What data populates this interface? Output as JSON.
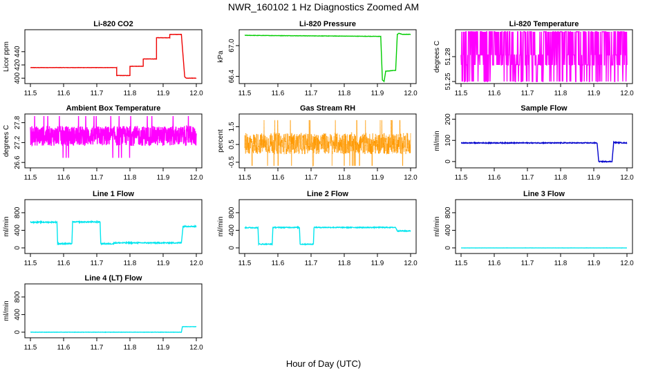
{
  "figure": {
    "title": "NWR_160102  1 Hz Diagnostics Zoomed AM",
    "xlabel": "Hour of Day (UTC)"
  },
  "chart_data": [
    {
      "type": "line",
      "title": "Li-820 CO2",
      "ylabel": "Licor ppm",
      "color": "#ee0000",
      "xlim": [
        11.5,
        12.0
      ],
      "ylim": [
        395,
        470
      ],
      "xticks": [
        "11.5",
        "11.6",
        "11.7",
        "11.8",
        "11.9",
        "12.0"
      ],
      "yticks": [
        "400",
        "420",
        "440"
      ],
      "x": [
        11.5,
        11.76,
        11.76,
        11.8,
        11.8,
        11.84,
        11.84,
        11.88,
        11.88,
        11.92,
        11.92,
        11.955,
        11.965,
        11.97,
        12.0
      ],
      "y": [
        416,
        416,
        404,
        404,
        418,
        418,
        429,
        429,
        461,
        461,
        466,
        466,
        402,
        400,
        400
      ],
      "noise": 0.2
    },
    {
      "type": "line",
      "title": "Li-820 Pressure",
      "ylabel": "kPa",
      "color": "#00cc00",
      "xlim": [
        11.5,
        12.0
      ],
      "ylim": [
        66.3,
        67.27
      ],
      "xticks": [
        "11.5",
        "11.6",
        "11.7",
        "11.8",
        "11.9",
        "12.0"
      ],
      "yticks": [
        "66.4",
        "67.0"
      ],
      "x": [
        11.5,
        11.91,
        11.915,
        11.92,
        11.925,
        11.955,
        11.96,
        11.965,
        11.975,
        12.0
      ],
      "y": [
        67.2,
        67.18,
        66.33,
        66.3,
        66.5,
        66.52,
        67.22,
        67.24,
        67.22,
        67.22
      ],
      "noise": 0.003
    },
    {
      "type": "line",
      "title": "Li-820 Temperature",
      "ylabel": "degrees C",
      "color": "#ff00ff",
      "xlim": [
        11.5,
        12.0
      ],
      "ylim": [
        51.25,
        51.31
      ],
      "xticks": [
        "11.5",
        "11.6",
        "11.7",
        "11.8",
        "11.9",
        "12.0"
      ],
      "yticks": [
        "51.25",
        "51.28"
      ],
      "pattern": "quantized",
      "levels": [
        51.25,
        51.27,
        51.282,
        51.31
      ],
      "x": [
        11.5,
        12.0
      ],
      "y": [
        51.282,
        51.282
      ]
    },
    {
      "type": "line",
      "title": "Ambient Box Temperature",
      "ylabel": "degrees C",
      "color": "#ff00ff",
      "xlim": [
        11.5,
        12.0
      ],
      "ylim": [
        26.5,
        28.0
      ],
      "xticks": [
        "11.5",
        "11.6",
        "11.7",
        "11.8",
        "11.9",
        "12.0"
      ],
      "yticks": [
        "26.6",
        "27.2",
        "27.8"
      ],
      "pattern": "noise",
      "center": 27.4,
      "amplitude": 0.3,
      "x": [
        11.5,
        12.0
      ],
      "y": [
        27.4,
        27.4
      ]
    },
    {
      "type": "line",
      "title": "Gas Stream RH",
      "ylabel": "percent",
      "color": "#ff9900",
      "xlim": [
        11.5,
        12.0
      ],
      "ylim": [
        -0.7,
        2.1
      ],
      "xticks": [
        "11.5",
        "11.6",
        "11.7",
        "11.8",
        "11.9",
        "12.0"
      ],
      "yticks": [
        "-0.5",
        "0.5",
        "1.5"
      ],
      "pattern": "noise",
      "center": 0.55,
      "amplitude": 0.6,
      "dotted": true,
      "x": [
        11.5,
        12.0
      ],
      "y": [
        0.55,
        0.55
      ]
    },
    {
      "type": "line",
      "title": "Sample Flow",
      "ylabel": "ml/min",
      "color": "#0000cc",
      "xlim": [
        11.5,
        12.0
      ],
      "ylim": [
        -20,
        215
      ],
      "xticks": [
        "11.5",
        "11.6",
        "11.7",
        "11.8",
        "11.9",
        "12.0"
      ],
      "yticks": [
        "0",
        "100",
        "200"
      ],
      "x": [
        11.5,
        11.91,
        11.915,
        11.955,
        11.96,
        12.0
      ],
      "y": [
        88,
        88,
        0,
        0,
        90,
        88
      ],
      "noise": 2
    },
    {
      "type": "line",
      "title": "Line 1 Flow",
      "ylabel": "ml/min",
      "color": "#00e5ee",
      "xlim": [
        11.5,
        12.0
      ],
      "ylim": [
        -80,
        1050
      ],
      "xticks": [
        "11.5",
        "11.6",
        "11.7",
        "11.8",
        "11.9",
        "12.0"
      ],
      "yticks": [
        "0",
        "400",
        "800"
      ],
      "x": [
        11.5,
        11.58,
        11.582,
        11.625,
        11.627,
        11.71,
        11.712,
        11.75,
        11.753,
        11.955,
        11.96,
        12.0
      ],
      "y": [
        585,
        585,
        95,
        95,
        590,
        590,
        95,
        95,
        115,
        115,
        490,
        490
      ],
      "noise": 12
    },
    {
      "type": "line",
      "title": "Line 2 Flow",
      "ylabel": "ml/min",
      "color": "#00e5ee",
      "xlim": [
        11.5,
        12.0
      ],
      "ylim": [
        -80,
        1050
      ],
      "xticks": [
        "11.5",
        "11.6",
        "11.7",
        "11.8",
        "11.9",
        "12.0"
      ],
      "yticks": [
        "0",
        "400",
        "800"
      ],
      "x": [
        11.5,
        11.54,
        11.542,
        11.583,
        11.585,
        11.665,
        11.667,
        11.707,
        11.709,
        11.955,
        11.96,
        12.0
      ],
      "y": [
        460,
        460,
        85,
        85,
        465,
        465,
        85,
        85,
        465,
        465,
        385,
        385
      ],
      "noise": 10
    },
    {
      "type": "line",
      "title": "Line 3 Flow",
      "ylabel": "ml/min",
      "color": "#00e5ee",
      "xlim": [
        11.5,
        12.0
      ],
      "ylim": [
        -80,
        1050
      ],
      "xticks": [
        "11.5",
        "11.6",
        "11.7",
        "11.8",
        "11.9",
        "12.0"
      ],
      "yticks": [
        "0",
        "400",
        "800"
      ],
      "x": [
        11.5,
        12.0
      ],
      "y": [
        0,
        0
      ],
      "noise": 1
    },
    {
      "type": "line",
      "title": "Line 4 (LT) Flow",
      "ylabel": "ml/min",
      "color": "#00e5ee",
      "xlim": [
        11.5,
        12.0
      ],
      "ylim": [
        -80,
        1050
      ],
      "xticks": [
        "11.5",
        "11.6",
        "11.7",
        "11.8",
        "11.9",
        "12.0"
      ],
      "yticks": [
        "0",
        "400",
        "800"
      ],
      "x": [
        11.5,
        11.955,
        11.958,
        12.0
      ],
      "y": [
        0,
        0,
        125,
        125
      ],
      "noise": 3
    }
  ]
}
